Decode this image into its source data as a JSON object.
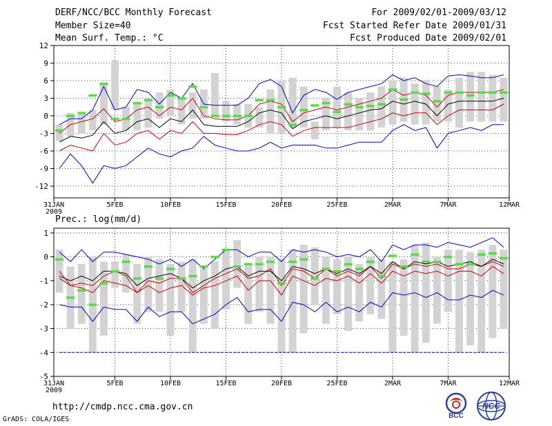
{
  "header": {
    "title": "DERF/NCC/BCC Monthly Forecast",
    "member_size": "Member Size=40",
    "variable": "Mean Surf. Temp.: °C",
    "period": "For 2009/02/01-2009/03/12",
    "started": "Fcst Started Refer Date 2009/01/31",
    "produced": "Fcst Produced Date 2009/02/01"
  },
  "footer": {
    "url": "http://cmdp.ncc.cma.gov.cn",
    "grads": "GrADS: COLA/IGES"
  },
  "logos": {
    "left_text": "BCC",
    "right_text": "NCC"
  },
  "colors": {
    "mean": "#000000",
    "std": "#cc0000",
    "extreme": "#0000cc",
    "box": "#d3d3d3",
    "obs": "#55dd44"
  },
  "chart_data": [
    {
      "type": "ensemble-boxplot",
      "title": "Mean Surf. Temp.: °C",
      "ylim": [
        -14,
        12
      ],
      "yticks": [
        12,
        9,
        6,
        3,
        0,
        -3,
        -6,
        -9,
        -12
      ],
      "x_days": 41,
      "xticks": [
        {
          "day": 0,
          "label": "31JAN",
          "sub": "2009"
        },
        {
          "day": 5,
          "label": "5FEB"
        },
        {
          "day": 10,
          "label": "10FEB"
        },
        {
          "day": 15,
          "label": "15FEB"
        },
        {
          "day": 20,
          "label": "20FEB"
        },
        {
          "day": 25,
          "label": "25FEB"
        },
        {
          "day": 30,
          "label": "2MAR"
        },
        {
          "day": 35,
          "label": "7MAR"
        },
        {
          "day": 40,
          "label": "12MAR"
        }
      ],
      "box_low": [
        -4.3,
        -3.5,
        -3,
        -2.5,
        -1.5,
        1,
        -2.5,
        -2.5,
        -2,
        -0.5,
        0,
        -1.5,
        -0.5,
        -0.5,
        0,
        -1,
        -1.5,
        -2,
        -2,
        -3,
        -3,
        -2,
        -2,
        -4,
        -2.5,
        -2,
        -2.5,
        -2.5,
        -2.5,
        -2,
        -1.5,
        -1,
        -1.5,
        -1.5,
        -1,
        -1,
        -2,
        -1,
        -1,
        -1,
        -1
      ],
      "box_high": [
        -1.5,
        0.5,
        0.5,
        1,
        5.5,
        9.5,
        1.5,
        2,
        3,
        4,
        4.5,
        3,
        4,
        4.5,
        7.3,
        2.5,
        2,
        2,
        1.5,
        4.5,
        6,
        6.5,
        5,
        -1,
        3,
        5,
        4,
        3,
        4,
        5,
        6,
        6.5,
        5.5,
        6,
        5,
        4.5,
        6.5,
        7.5,
        7.5,
        7,
        6.5
      ],
      "obs": [
        -2.5,
        0,
        0.5,
        3.5,
        5.5,
        -0.5,
        -0.5,
        2.2,
        2.7,
        1.5,
        3.5,
        3,
        5,
        1.5,
        0,
        0,
        0,
        0,
        2.7,
        2.7,
        1.5,
        -1.5,
        1,
        1.8,
        2.2,
        0.7,
        2,
        1.5,
        1.7,
        2,
        4.5,
        2.8,
        4,
        3.8,
        2.5,
        4,
        4,
        3.5,
        4,
        4,
        4
      ],
      "series": [
        {
          "name": "max",
          "style": "extreme",
          "values": [
            -1.5,
            -0.5,
            -0.5,
            1,
            5,
            1,
            1.5,
            4.5,
            4,
            2,
            4,
            3,
            5.5,
            2,
            1.8,
            1.8,
            1.8,
            3,
            5.5,
            6.2,
            5,
            0.5,
            3.5,
            4.5,
            4,
            2.8,
            4,
            4.5,
            5,
            5.5,
            7,
            6,
            6.5,
            5.5,
            5,
            6.8,
            7,
            6.8,
            6.5,
            6.5,
            7
          ]
        },
        {
          "name": "mean+std",
          "style": "std",
          "values": [
            -3,
            -1.5,
            -1,
            -0.5,
            1.2,
            -1,
            -0.5,
            1,
            1.5,
            0,
            1.5,
            1,
            3,
            0,
            -0.5,
            -0.7,
            -0.7,
            0,
            2,
            2.5,
            2,
            -1,
            0.5,
            1,
            1.5,
            1,
            1.5,
            2,
            2.5,
            3,
            4.5,
            3.5,
            4,
            3.5,
            1.5,
            3.5,
            4,
            4,
            4,
            4,
            4.5
          ]
        },
        {
          "name": "mean",
          "style": "mean",
          "values": [
            -4.5,
            -3.5,
            -3.8,
            -3.3,
            -1,
            -3,
            -2.5,
            -1,
            -0.5,
            -2,
            -0.5,
            -1,
            1,
            -1.5,
            -1.8,
            -1.8,
            -1.8,
            -1,
            0.5,
            1,
            0.5,
            -2.2,
            -1,
            -0.5,
            0,
            -0.5,
            0,
            0.5,
            1,
            1.2,
            2.5,
            2,
            2.5,
            2,
            0,
            2,
            2.5,
            2.5,
            2.5,
            2.5,
            3
          ]
        },
        {
          "name": "mean-std",
          "style": "std",
          "values": [
            -6,
            -5,
            -5.5,
            -6,
            -3,
            -5,
            -4.5,
            -3,
            -2.5,
            -4,
            -2.5,
            -3,
            -1,
            -3,
            -3,
            -3.2,
            -3.2,
            -2.5,
            -1.5,
            -1,
            -1.5,
            -3.5,
            -2.5,
            -2,
            -2,
            -2,
            -2,
            -1.5,
            -1,
            -0.5,
            0.5,
            0,
            0.5,
            0.5,
            -1.5,
            0,
            1,
            1,
            1,
            1,
            2
          ]
        },
        {
          "name": "min",
          "style": "extreme",
          "values": [
            -9,
            -6.5,
            -8.5,
            -11.5,
            -8.5,
            -9,
            -8.5,
            -7,
            -5.5,
            -6.5,
            -7,
            -6,
            -5.5,
            -3.5,
            -5,
            -5.5,
            -6,
            -6,
            -5.5,
            -4.5,
            -5.5,
            -5,
            -5,
            -5,
            -5.5,
            -5.5,
            -5,
            -4.5,
            -4.5,
            -4.5,
            -2.5,
            -1.5,
            -2.5,
            -2,
            -5.5,
            -3,
            -2.5,
            -2,
            -2.5,
            -1.5,
            -1.5
          ]
        }
      ]
    },
    {
      "type": "ensemble-boxplot",
      "title": "Prec.: log(mm/d)",
      "ylim": [
        -5,
        1.2
      ],
      "yticks": [
        1,
        0,
        -1,
        -2,
        -3,
        -4,
        -5
      ],
      "x_days": 41,
      "xticks": [
        {
          "day": 0,
          "label": "31JAN",
          "sub": "2009"
        },
        {
          "day": 5,
          "label": "5FEB"
        },
        {
          "day": 10,
          "label": "10FEB"
        },
        {
          "day": 15,
          "label": "15FEB"
        },
        {
          "day": 20,
          "label": "20FEB"
        },
        {
          "day": 25,
          "label": "25FEB"
        },
        {
          "day": 30,
          "label": "2MAR"
        },
        {
          "day": 35,
          "label": "7MAR"
        },
        {
          "day": 40,
          "label": "12MAR"
        }
      ],
      "box_low": [
        -1.5,
        -3,
        -2.8,
        -4,
        -3.3,
        -1.3,
        -1.5,
        -2.8,
        -2.3,
        -2.3,
        -3.3,
        -2.3,
        -4,
        -2.8,
        -3,
        -2.2,
        -1.3,
        -2.8,
        -2.3,
        -2.8,
        -4,
        -4,
        -3.2,
        -2,
        -2.8,
        -2.4,
        -3.1,
        -2.7,
        -2.4,
        -2.6,
        -4,
        -3.3,
        -4,
        -3.6,
        -2.8,
        -2.3,
        -4,
        -3.7,
        -4,
        -3.4,
        -3
      ],
      "box_high": [
        0.3,
        -0.4,
        -0.3,
        0,
        -0.2,
        -0.2,
        0.1,
        -0.3,
        0,
        -0.1,
        -0.3,
        -0.2,
        -0.1,
        -0.5,
        -0.2,
        0.3,
        0.7,
        -0.3,
        0,
        0,
        -0.1,
        0.3,
        0.5,
        0.4,
        0,
        -0.1,
        0,
        -0.3,
        0,
        -0.1,
        -0.2,
        -0.1,
        0.5,
        0.6,
        0,
        0.3,
        0.3,
        0.2,
        0.3,
        0.5,
        0.3
      ],
      "obs": [
        -0.1,
        -1.7,
        -1.4,
        -2,
        -1.1,
        -0.6,
        -0.2,
        -0.9,
        -0.4,
        -0.9,
        -0.5,
        -0.9,
        -0.8,
        -0.4,
        0,
        0.3,
        -0.4,
        -0.3,
        -0.3,
        -0.2,
        -1.1,
        -0.2,
        -0.1,
        -0.9,
        -0.5,
        -0.6,
        -0.3,
        -0.5,
        -0.2,
        -0.8,
        0.05,
        -0.4,
        0.1,
        -0.2,
        -0.2,
        0,
        -0.3,
        -0.3,
        0.1,
        0.15,
        -0.05
      ],
      "series": [
        {
          "name": "max",
          "style": "extreme",
          "values": [
            0.2,
            -0.2,
            0.3,
            -0.2,
            0.2,
            0.2,
            0.1,
            0,
            -0.1,
            -0.3,
            -0.1,
            -0.4,
            -0.1,
            -0.5,
            -0.1,
            0.3,
            0.3,
            0,
            0.2,
            0.2,
            -0.2,
            0.3,
            0.2,
            0.3,
            0.2,
            0,
            0.1,
            0,
            0.3,
            -0.2,
            0.5,
            0.3,
            0.5,
            0.5,
            0.4,
            0.6,
            0.5,
            0.4,
            0.6,
            0.8,
            0.4
          ]
        },
        {
          "name": "mean+std",
          "style": "std",
          "values": [
            -0.6,
            -1.2,
            -1.1,
            -1.2,
            -0.8,
            -0.6,
            -0.8,
            -1.5,
            -1,
            -1.1,
            -0.9,
            -0.9,
            -1.5,
            -1.2,
            -0.9,
            -0.7,
            -0.5,
            -0.9,
            -0.8,
            -0.5,
            -1.2,
            -0.5,
            -0.6,
            -0.9,
            -0.5,
            -0.8,
            -0.6,
            -0.8,
            -0.4,
            -0.9,
            -0.3,
            -0.5,
            -0.3,
            -0.4,
            -0.3,
            -0.5,
            -0.5,
            -0.3,
            -0.4,
            -0.2,
            -0.4
          ]
        },
        {
          "name": "mean",
          "style": "mean",
          "values": [
            -0.8,
            -1,
            -0.8,
            -1,
            -0.6,
            -0.6,
            -0.7,
            -1.2,
            -0.9,
            -0.8,
            -0.7,
            -0.9,
            -1.3,
            -1,
            -0.8,
            -0.5,
            -0.4,
            -0.8,
            -0.6,
            -0.6,
            -1,
            -0.4,
            -0.5,
            -0.7,
            -0.5,
            -0.7,
            -0.5,
            -0.7,
            -0.4,
            -0.7,
            -0.2,
            -0.5,
            -0.2,
            -0.3,
            -0.2,
            -0.4,
            -0.3,
            -0.2,
            -0.4,
            -0.1,
            -0.3
          ]
        },
        {
          "name": "mean-std",
          "style": "std",
          "values": [
            -0.9,
            -1.2,
            -1.3,
            -1.5,
            -1,
            -1.1,
            -1.2,
            -1.5,
            -1.2,
            -1.5,
            -1.3,
            -1.2,
            -1.6,
            -1.3,
            -1.2,
            -1,
            -0.8,
            -1.4,
            -1,
            -1,
            -1.6,
            -0.8,
            -1,
            -1.2,
            -0.9,
            -1,
            -0.8,
            -1.1,
            -0.7,
            -1.1,
            -0.6,
            -0.8,
            -0.6,
            -0.7,
            -0.6,
            -0.8,
            -0.6,
            -0.6,
            -0.8,
            -0.4,
            -0.7
          ]
        },
        {
          "name": "min",
          "style": "extreme",
          "values": [
            -2,
            -2.1,
            -2.1,
            -2.7,
            -2.1,
            -2.2,
            -2.2,
            -2.7,
            -2.1,
            -2.5,
            -2.3,
            -2.3,
            -2.8,
            -2.6,
            -2.4,
            -2,
            -1.7,
            -2.3,
            -2.2,
            -2.2,
            -2.7,
            -1.9,
            -2,
            -2.3,
            -1.9,
            -2.3,
            -2.1,
            -2.3,
            -1.9,
            -2.1,
            -1.5,
            -1.6,
            -1.5,
            -1.7,
            -1.5,
            -1.8,
            -1.8,
            -1.6,
            -1.7,
            -1.4,
            -1.6
          ]
        },
        {
          "name": "floor",
          "style": "floor",
          "values": [
            -4,
            -4,
            -4,
            -4,
            -4,
            -4,
            -4,
            -4,
            -4,
            -4,
            -4,
            -4,
            -4,
            -4,
            -4,
            -4,
            -4,
            -4,
            -4,
            -4,
            -4,
            -4,
            -4,
            -4,
            -4,
            -4,
            -4,
            -4,
            -4,
            -4,
            -4,
            -4,
            -4,
            -4,
            -4,
            -4,
            -4,
            -4,
            -4,
            -4,
            -4
          ]
        }
      ]
    }
  ]
}
